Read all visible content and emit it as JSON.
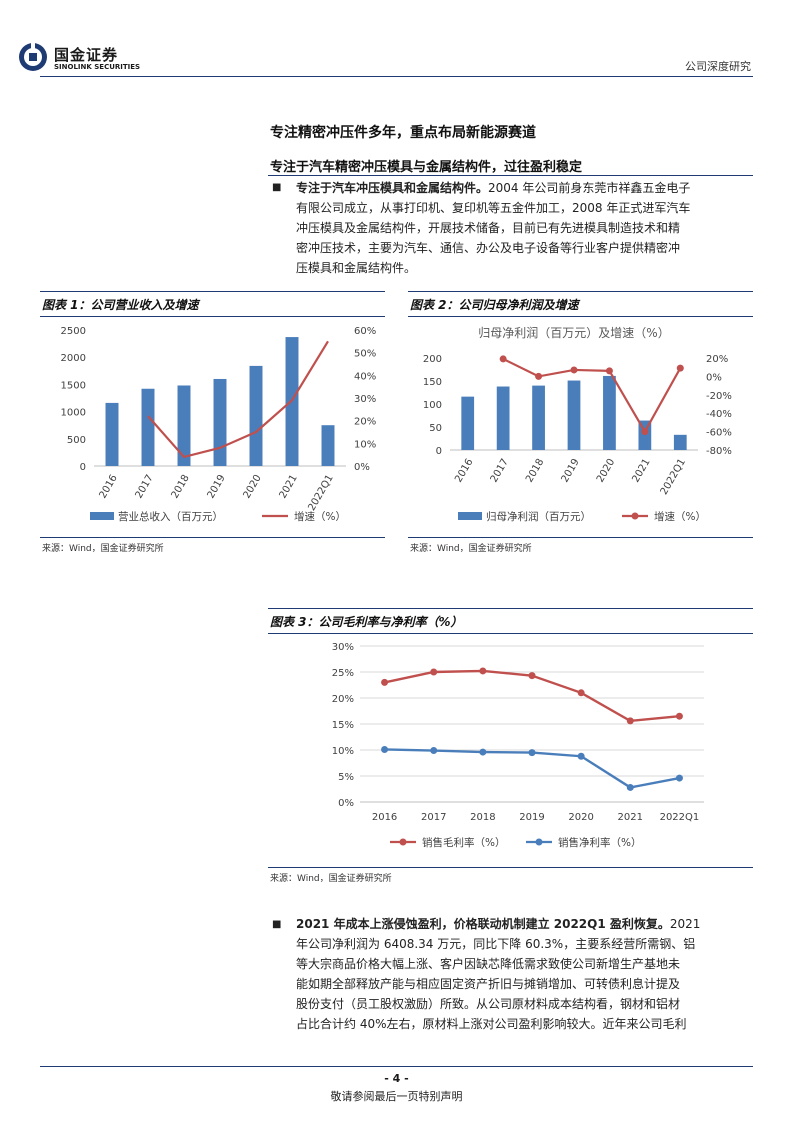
{
  "header": {
    "brand_cn": "国金证券",
    "brand_en": "SINOLINK SECURITIES",
    "doc_type": "公司深度研究"
  },
  "section": {
    "title": "专注精密冲压件多年，重点布局新能源赛道",
    "subtitle": "专注于汽车精密冲压模具与金属结构件，过往盈利稳定"
  },
  "para1": {
    "lead": "专注于汽车冲压模具和金属结构件。",
    "lines": [
      "2004 年公司前身东莞市祥鑫五金电子",
      "有限公司成立，从事打印机、复印机等五金件加工，2008 年正式进军汽车",
      "冲压模具及金属结构件，开展技术储备，目前已有先进模具制造技术和精",
      "密冲压技术，主要为汽车、通信、办公及电子设备等行业客户提供精密冲",
      "压模具和金属结构件。"
    ]
  },
  "fig1": {
    "label": "图表 1：公司营业收入及增速",
    "source": "来源：Wind，国金证券研究所"
  },
  "fig2": {
    "label": "图表 2：公司归母净利润及增速",
    "source": "来源：Wind，国金证券研究所"
  },
  "fig3": {
    "label": "图表 3：公司毛利率与净利率（%）",
    "source": "来源：Wind，国金证券研究所"
  },
  "chart_data": [
    {
      "type": "bar",
      "categories": [
        "2016",
        "2017",
        "2018",
        "2019",
        "2020",
        "2021",
        "2022Q1"
      ],
      "series": [
        {
          "name": "营业总收入（百万元）",
          "type": "bar",
          "axis": "left",
          "color": "#4a7ebb",
          "values": [
            1160,
            1420,
            1480,
            1600,
            1840,
            2370,
            750
          ]
        },
        {
          "name": "增速（%）",
          "type": "line",
          "axis": "right",
          "color": "#c0504d",
          "values": [
            null,
            22,
            4,
            8,
            15,
            29,
            55
          ]
        }
      ],
      "left_axis": {
        "min": 0,
        "max": 2500,
        "ticks": [
          "0",
          "500",
          "1000",
          "1500",
          "2000",
          "2500"
        ]
      },
      "right_axis": {
        "min": 0,
        "max": 60,
        "ticks": [
          "0%",
          "10%",
          "20%",
          "30%",
          "40%",
          "50%",
          "60%"
        ]
      },
      "title": "",
      "legend": "bottom"
    },
    {
      "type": "bar",
      "title": "归母净利润（百万元）及增速（%）",
      "categories": [
        "2016",
        "2017",
        "2018",
        "2019",
        "2020",
        "2021",
        "2022Q1"
      ],
      "series": [
        {
          "name": "归母净利润（百万元）",
          "type": "bar",
          "axis": "left",
          "color": "#4a7ebb",
          "values": [
            116,
            138,
            140,
            151,
            161,
            64,
            33
          ]
        },
        {
          "name": "增速（%）",
          "type": "line",
          "axis": "right",
          "color": "#c0504d",
          "values": [
            null,
            19,
            0,
            7,
            6,
            -60,
            9
          ]
        }
      ],
      "left_axis": {
        "min": 0,
        "max": 200,
        "ticks": [
          "0",
          "50",
          "100",
          "150",
          "200"
        ]
      },
      "right_axis": {
        "min": -80,
        "max": 20,
        "ticks": [
          "-80%",
          "-60%",
          "-40%",
          "-20%",
          "0%",
          "20%"
        ]
      },
      "legend": "bottom"
    },
    {
      "type": "line",
      "categories": [
        "2016",
        "2017",
        "2018",
        "2019",
        "2020",
        "2021",
        "2022Q1"
      ],
      "series": [
        {
          "name": "销售毛利率（%）",
          "color": "#c0504d",
          "values": [
            23.0,
            25.0,
            25.2,
            24.3,
            21.0,
            15.6,
            16.5
          ]
        },
        {
          "name": "销售净利率（%）",
          "color": "#4a7ebb",
          "values": [
            10.1,
            9.9,
            9.6,
            9.5,
            8.8,
            2.8,
            4.6
          ]
        }
      ],
      "y_axis": {
        "min": 0,
        "max": 30,
        "ticks": [
          "0%",
          "5%",
          "10%",
          "15%",
          "20%",
          "25%",
          "30%"
        ]
      },
      "title": "",
      "legend": "bottom"
    }
  ],
  "para2": {
    "lead": "2021 年成本上涨侵蚀盈利，价格联动机制建立 2022Q1 盈利恢复。",
    "lead_tail": "2021",
    "lines": [
      "年公司净利润为 6408.34 万元，同比下降 60.3%，主要系经营所需钢、铝",
      "等大宗商品价格大幅上涨、客户因缺芯降低需求致使公司新增生产基地未",
      "能如期全部释放产能与相应固定资产折旧与摊销增加、可转债利息计提及",
      "股份支付（员工股权激励）所致。从公司原材料成本结构看，钢材和铝材",
      "占比合计约 40%左右，原材料上涨对公司盈利影响较大。近年来公司毛利"
    ]
  },
  "footer": {
    "page": "- 4 -",
    "disclaimer": "敬请参阅最后一页特别声明"
  }
}
